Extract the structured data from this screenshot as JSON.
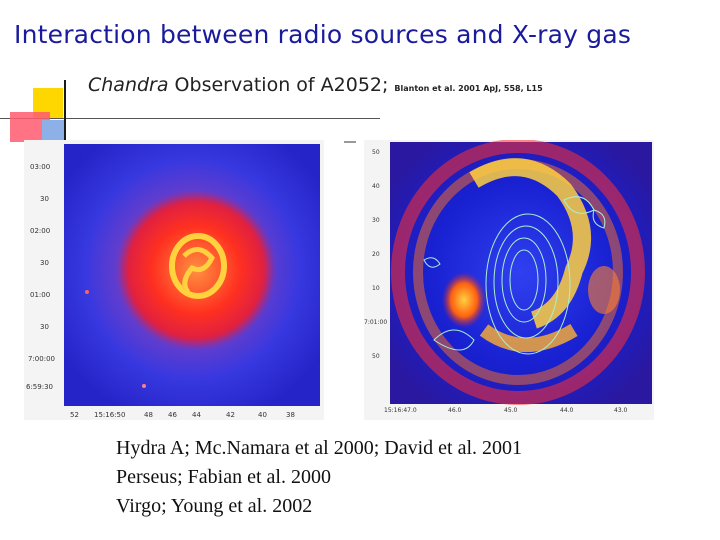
{
  "slide": {
    "title": "Interaction between radio sources and X-ray gas",
    "subtitle_italic": "Chandra",
    "subtitle_rest": " Observation of A2052;",
    "citation": "Blanton et al. 2001 ApJ, 558, L15"
  },
  "left_image": {
    "y_ticks": [
      "03:00",
      "30",
      "02:00",
      "30",
      "01:00",
      "30",
      "7:00:00",
      "6:59:30"
    ],
    "x_ticks": [
      "52",
      "15:16:50",
      "48",
      "46",
      "44",
      "42",
      "40",
      "38"
    ],
    "colors": {
      "background": "#3030e0",
      "halo": "#8040c0",
      "core": "#ff3020",
      "ring": "#ffe040"
    }
  },
  "right_image": {
    "y_ticks": [
      "50",
      "40",
      "30",
      "20",
      "10",
      "7:01:00",
      "50"
    ],
    "x_ticks": [
      "15:16:47.0",
      "46.0",
      "45.0",
      "44.0",
      "43.0"
    ],
    "colors": {
      "background": "#1820d0",
      "shell": "#ff6010",
      "bright": "#ffd040",
      "contours": "#a8f0d0"
    }
  },
  "references": [
    "Hydra A; Mc.Namara et al 2000; David et al. 2001",
    "Perseus; Fabian et al. 2000",
    "Virgo; Young et al. 2002"
  ]
}
